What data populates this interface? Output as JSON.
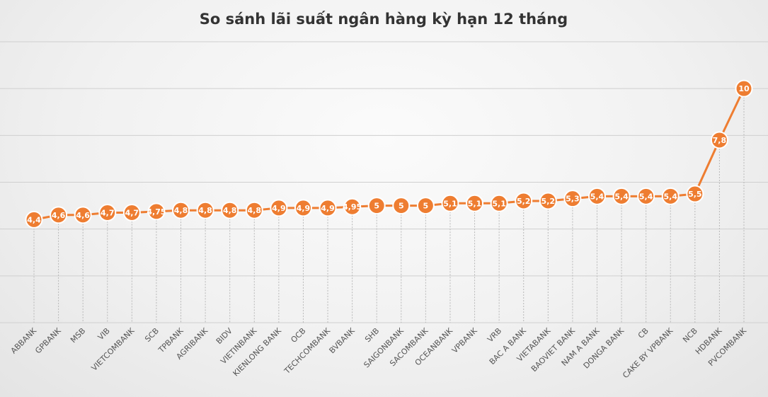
{
  "chart_data": {
    "type": "line",
    "title": "So sánh lãi suất ngân hàng kỳ hạn 12 tháng",
    "xlabel": "",
    "ylabel": "",
    "ylim": [
      0,
      12
    ],
    "grid": true,
    "legend": "none",
    "color": "#ee7d31",
    "categories": [
      "ABBANK",
      "GPBANK",
      "MSB",
      "VIB",
      "VIETCOMBANK",
      "SCB",
      "TPBANK",
      "AGRIBANK",
      "BIDV",
      "VIETINBANK",
      "KIENLONG BANK",
      "OCB",
      "TECHCOMBANK",
      "BVBANK",
      "SHB",
      "SAIGONBANK",
      "SACOMBANK",
      "OCEANBANK",
      "VPBANK",
      "VRB",
      "BAC A BANK",
      "VIETABANK",
      "BAOVIET BANK",
      "NAM A BANK",
      "DONGA BANK",
      "CB",
      "CAKE BY VPBANK",
      "NCB",
      "HDBANK",
      "PVCOMBANK"
    ],
    "values": [
      4.4,
      4.6,
      4.6,
      4.7,
      4.7,
      4.75,
      4.8,
      4.8,
      4.8,
      4.8,
      4.9,
      4.9,
      4.9,
      4.95,
      5,
      5,
      5,
      5.1,
      5.1,
      5.1,
      5.2,
      5.2,
      5.3,
      5.4,
      5.4,
      5.4,
      5.4,
      5.5,
      7.8,
      10
    ],
    "labels": [
      "4,4",
      "4,6",
      "4,6",
      "4,7",
      "4,7",
      "4,75",
      "4,8",
      "4,8",
      "4,8",
      "4,8",
      "4,9",
      "4,9",
      "4,9",
      "4,95",
      "5",
      "5",
      "5",
      "5,1",
      "5,1",
      "5,1",
      "5,2",
      "5,2",
      "5,3",
      "5,4",
      "5,4",
      "5,4",
      "5,4",
      "5,5",
      "7,8",
      "10"
    ]
  }
}
